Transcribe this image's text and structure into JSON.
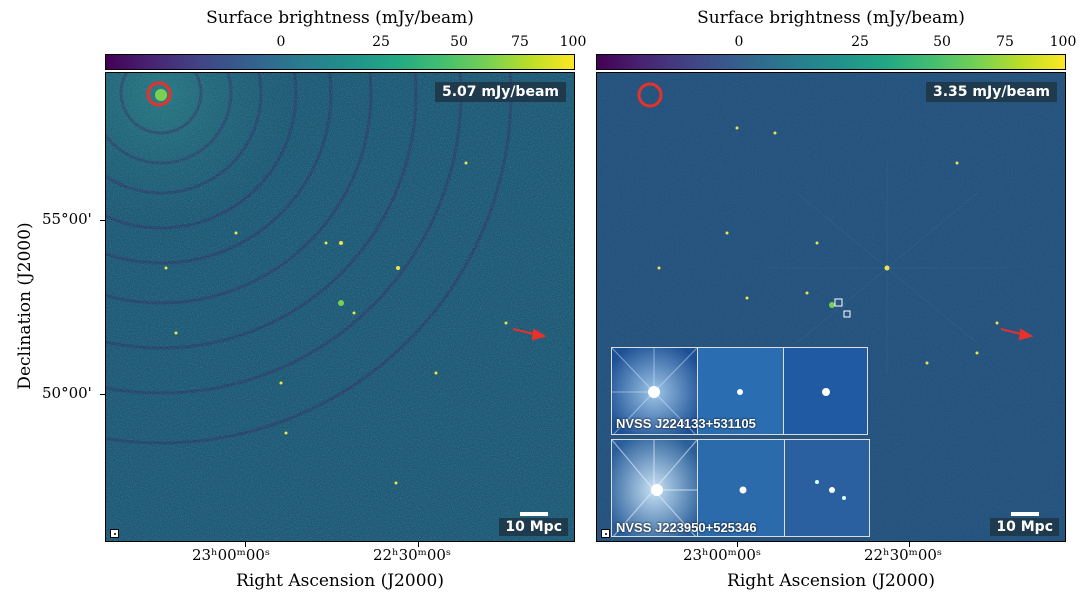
{
  "colorbar": {
    "title": "Surface brightness (mJy/beam)",
    "ticks": [
      "0",
      "25",
      "50",
      "75",
      "100"
    ]
  },
  "panels": [
    {
      "rms_label": "5.07 mJy/beam",
      "scalebar_label": "10 Mpc"
    },
    {
      "rms_label": "3.35 mJy/beam",
      "scalebar_label": "10 Mpc",
      "insets": [
        {
          "caption": "NVSS J224133+531105"
        },
        {
          "caption": "NVSS J223950+525346"
        }
      ]
    }
  ],
  "axes": {
    "xlabel": "Right Ascension (J2000)",
    "ylabel": "Declination (J2000)",
    "xticks": [
      "23ʰ00ᵐ00ˢ",
      "22ʰ30ᵐ00ˢ"
    ],
    "yticks": [
      "55°00'",
      "50°00'"
    ]
  },
  "colors": {
    "arrow": "#e8312a",
    "circle": "#e8312a",
    "label_bg": "#1f3a4d"
  }
}
